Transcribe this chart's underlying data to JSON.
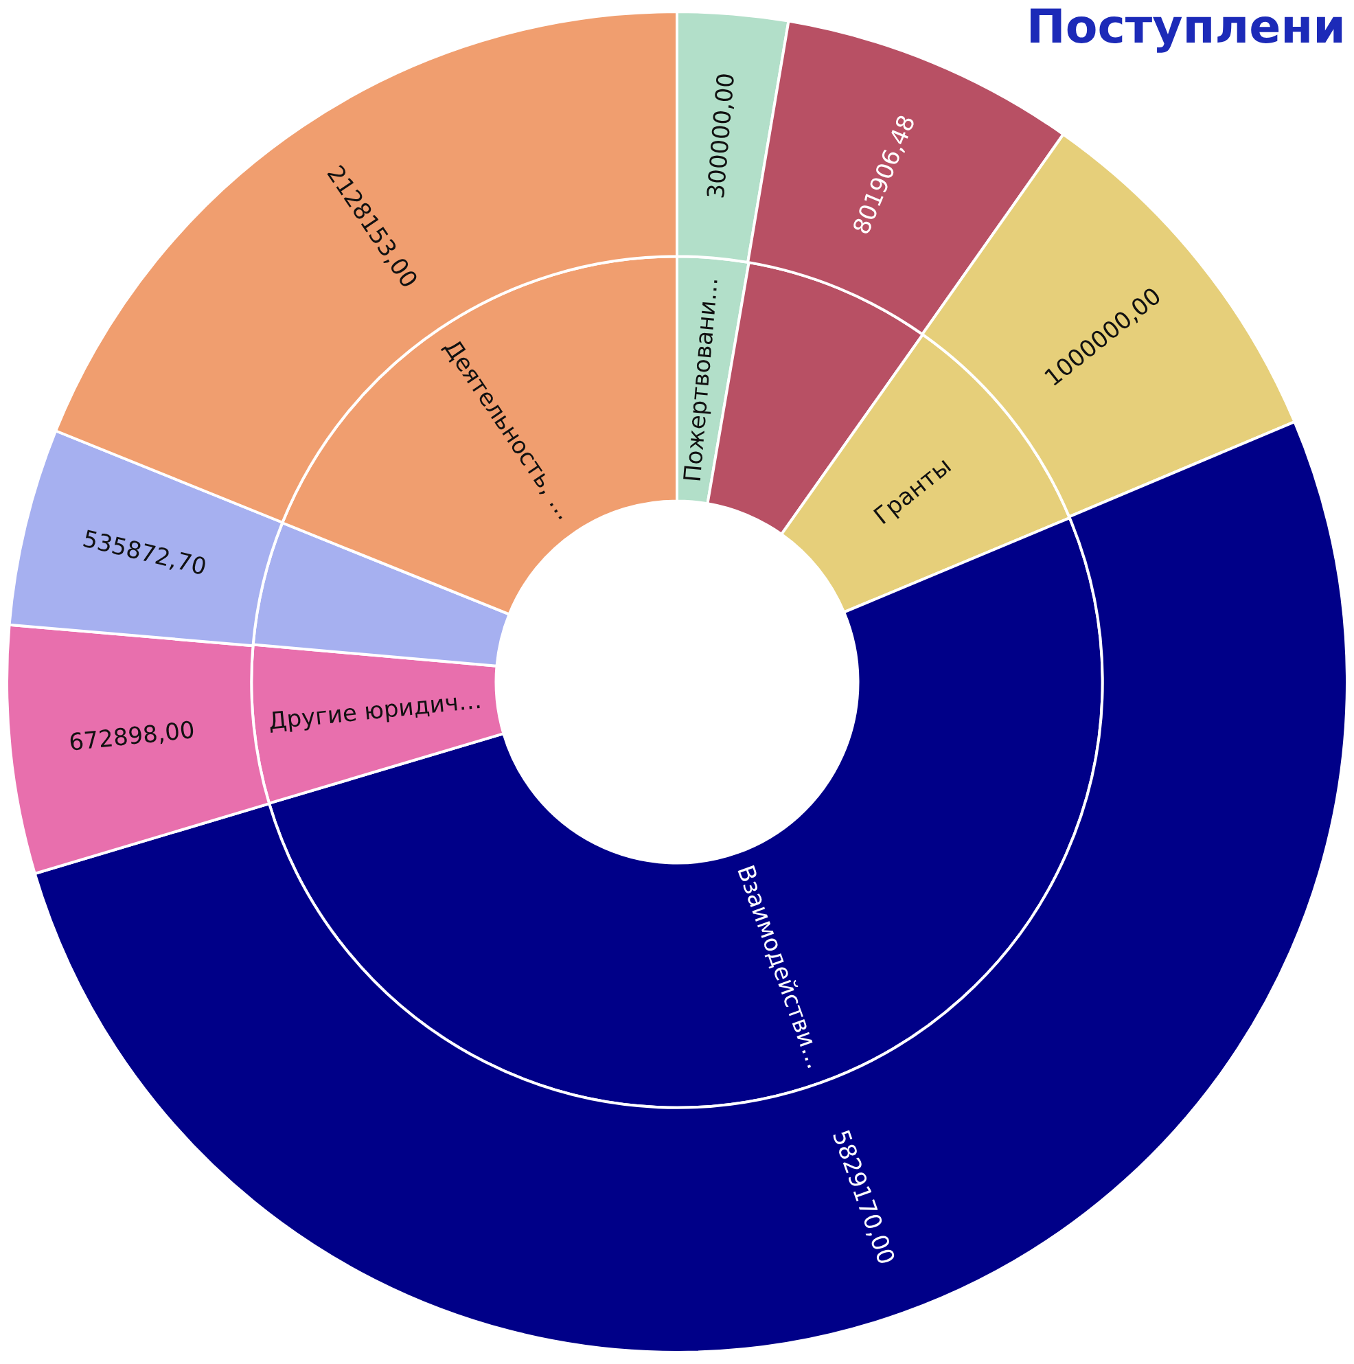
{
  "chart_data": {
    "type": "donut",
    "title": "Поступлени",
    "categories": [
      "Пожертвовани…",
      null,
      "Гранты",
      "Взаимодействи…",
      "Другие юридич…",
      null,
      "Деятельность, …"
    ],
    "colors": [
      "#b2dfc9",
      "#b85064",
      "#e6cf7a",
      "#000088",
      "#e86fad",
      "#a6b0f0",
      "#f09e6f"
    ],
    "series": [
      {
        "values": [
          2.7,
          7.1,
          8.9,
          51.7,
          6.0,
          4.7,
          18.9
        ]
      },
      {
        "values": [
          300000,
          801906.48,
          1000000,
          5829170,
          672898,
          535872.7,
          2128153
        ],
        "value_labels": [
          "300000,00",
          "801906,48",
          "1000000,00",
          "5829170,00",
          "672898,00",
          "535872,70",
          "2128153,00"
        ]
      }
    ],
    "legend": false
  }
}
